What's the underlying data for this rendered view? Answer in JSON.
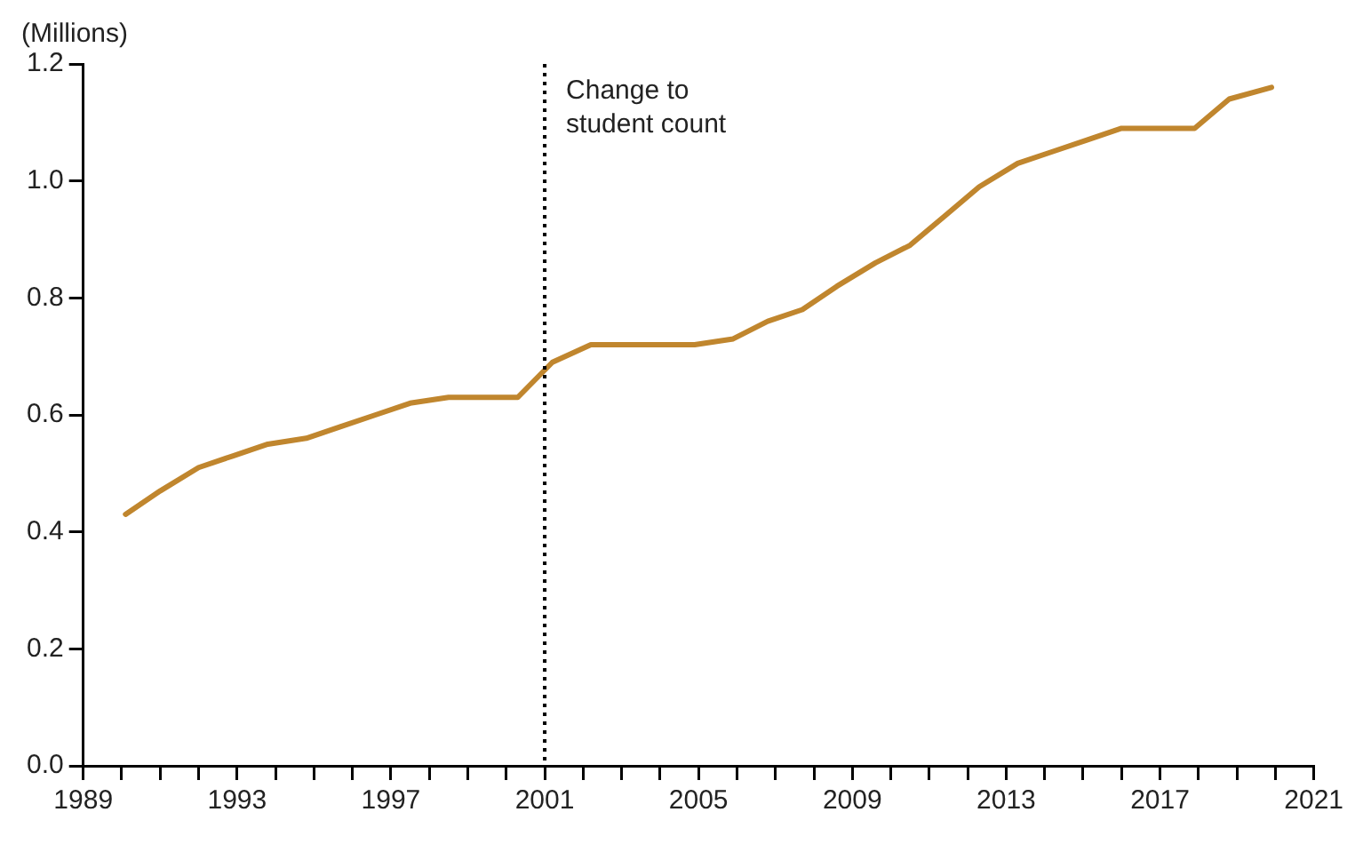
{
  "chart_data": {
    "type": "line",
    "ylabel": "(Millions)",
    "x": [
      1990.1,
      1991.0,
      1992.0,
      1992.9,
      1993.8,
      1994.8,
      1995.7,
      1996.6,
      1997.5,
      1998.5,
      1999.4,
      2000.3,
      2001.2,
      2002.2,
      2003.1,
      2004.0,
      2004.9,
      2005.9,
      2006.8,
      2007.7,
      2008.6,
      2009.6,
      2010.5,
      2011.4,
      2012.3,
      2013.3,
      2014.2,
      2015.1,
      2016.0,
      2016.9,
      2017.9,
      2018.8,
      2019.9
    ],
    "series": [
      {
        "color": "#c0862e",
        "values": [
          0.43,
          0.47,
          0.51,
          0.53,
          0.55,
          0.56,
          0.58,
          0.6,
          0.62,
          0.63,
          0.63,
          0.63,
          0.69,
          0.72,
          0.72,
          0.72,
          0.72,
          0.73,
          0.76,
          0.78,
          0.82,
          0.86,
          0.89,
          0.94,
          0.99,
          1.03,
          1.05,
          1.07,
          1.09,
          1.09,
          1.09,
          1.14,
          1.16
        ]
      }
    ],
    "xlim": [
      1989,
      2021
    ],
    "xticks": [
      1989,
      {
        "value": 1990,
        "label": null
      },
      {
        "value": 1991,
        "label": null
      },
      {
        "value": 1992,
        "label": null
      },
      1993,
      {
        "value": 1994,
        "label": null
      },
      {
        "value": 1995,
        "label": null
      },
      {
        "value": 1996,
        "label": null
      },
      1997,
      {
        "value": 1998,
        "label": null
      },
      {
        "value": 1999,
        "label": null
      },
      {
        "value": 2000,
        "label": null
      },
      2001,
      {
        "value": 2002,
        "label": null
      },
      {
        "value": 2003,
        "label": null
      },
      {
        "value": 2004,
        "label": null
      },
      2005,
      {
        "value": 2006,
        "label": null
      },
      {
        "value": 2007,
        "label": null
      },
      {
        "value": 2008,
        "label": null
      },
      2009,
      {
        "value": 2010,
        "label": null
      },
      {
        "value": 2011,
        "label": null
      },
      {
        "value": 2012,
        "label": null
      },
      2013,
      {
        "value": 2014,
        "label": null
      },
      {
        "value": 2015,
        "label": null
      },
      {
        "value": 2016,
        "label": null
      },
      2017,
      {
        "value": 2018,
        "label": null
      },
      {
        "value": 2019,
        "label": null
      },
      {
        "value": 2020,
        "label": null
      },
      2021
    ],
    "ylim": [
      0,
      1.2
    ],
    "yticks": [
      {
        "value": 0,
        "label": "0.0"
      },
      {
        "value": 0.2,
        "label": "0.2"
      },
      {
        "value": 0.4,
        "label": "0.4"
      },
      {
        "value": 0.6,
        "label": "0.6"
      },
      {
        "value": 0.8,
        "label": "0.8"
      },
      {
        "value": 1.0,
        "label": "1.0"
      },
      {
        "value": 1.2,
        "label": "1.2"
      }
    ],
    "ref_lines": [
      {
        "axis": "x",
        "value": 2001,
        "label": "Change to student count",
        "color": "#000000",
        "line_style": "dotted"
      }
    ],
    "grid": false,
    "legend": false,
    "marker": "none",
    "line_style": "solid"
  }
}
